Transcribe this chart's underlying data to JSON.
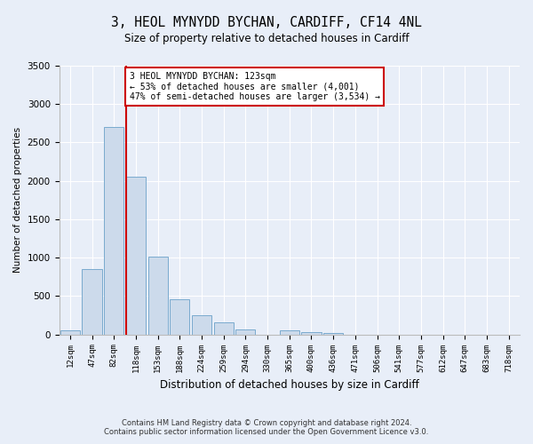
{
  "title": "3, HEOL MYNYDD BYCHAN, CARDIFF, CF14 4NL",
  "subtitle": "Size of property relative to detached houses in Cardiff",
  "xlabel": "Distribution of detached houses by size in Cardiff",
  "ylabel": "Number of detached properties",
  "footer_line1": "Contains HM Land Registry data © Crown copyright and database right 2024.",
  "footer_line2": "Contains public sector information licensed under the Open Government Licence v3.0.",
  "bar_labels": [
    "12sqm",
    "47sqm",
    "82sqm",
    "118sqm",
    "153sqm",
    "188sqm",
    "224sqm",
    "259sqm",
    "294sqm",
    "330sqm",
    "365sqm",
    "400sqm",
    "436sqm",
    "471sqm",
    "506sqm",
    "541sqm",
    "577sqm",
    "612sqm",
    "647sqm",
    "683sqm",
    "718sqm"
  ],
  "bar_values": [
    60,
    850,
    2700,
    2050,
    1010,
    455,
    250,
    160,
    65,
    0,
    50,
    35,
    25,
    0,
    0,
    0,
    0,
    0,
    0,
    0,
    0
  ],
  "bar_color": "#ccdaeb",
  "bar_edge_color": "#7aaace",
  "ylim": [
    0,
    3500
  ],
  "yticks": [
    0,
    500,
    1000,
    1500,
    2000,
    2500,
    3000,
    3500
  ],
  "annotation_line1": "3 HEOL MYNYDD BYCHAN: 123sqm",
  "annotation_line2": "← 53% of detached houses are smaller (4,001)",
  "annotation_line3": "47% of semi-detached houses are larger (3,534) →",
  "annotation_box_color": "#ffffff",
  "annotation_box_edge_color": "#cc0000",
  "vline_color": "#cc0000",
  "background_color": "#e8eef8",
  "plot_background_color": "#e8eef8",
  "grid_color": "#ffffff"
}
